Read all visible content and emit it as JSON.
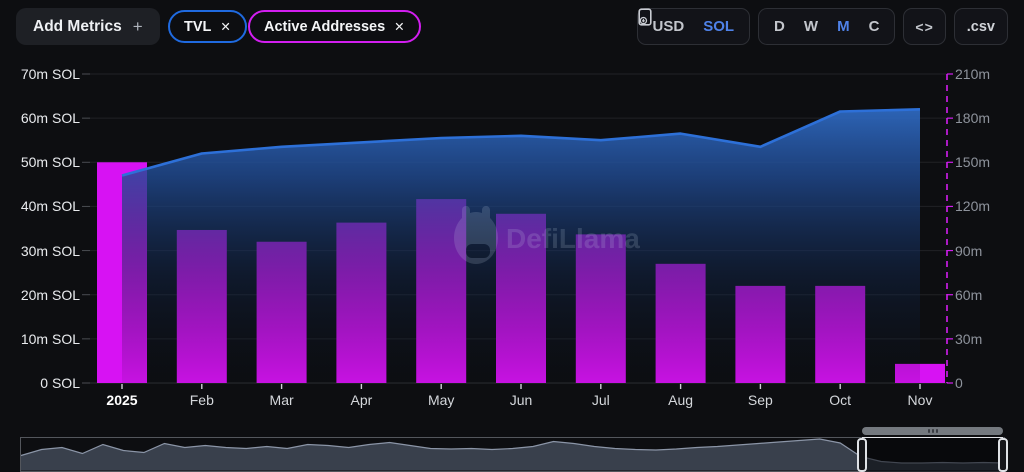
{
  "header": {
    "add_metrics_label": "Add Metrics",
    "add_metrics_plus": "+",
    "metric_pills": [
      {
        "label": "TVL",
        "close": "✕",
        "color": "#1f6ae0"
      },
      {
        "label": "Active Addresses",
        "close": "✕",
        "color": "#d21ef0"
      }
    ],
    "currency_toggle": {
      "options": [
        "USD",
        "SOL"
      ],
      "selected": "SOL",
      "active_color": "#4f82e8"
    },
    "interval_toggle": {
      "options": [
        "D",
        "W",
        "M",
        "C"
      ],
      "selected": "M",
      "active_color": "#4f82e8"
    },
    "embed_label": "<>",
    "csv_label": ".csv"
  },
  "chart_data": {
    "type": "combo",
    "categories": [
      "2025",
      "Feb",
      "Mar",
      "Apr",
      "May",
      "Jun",
      "Jul",
      "Aug",
      "Sep",
      "Oct",
      "Nov"
    ],
    "series": [
      {
        "name": "TVL",
        "type": "line",
        "axis": "left",
        "unit": "m SOL",
        "color": "#2d70d8",
        "values": [
          47,
          52,
          53.5,
          54.5,
          55.5,
          56,
          55,
          56.5,
          53.5,
          61.5,
          62
        ]
      },
      {
        "name": "Active Addresses",
        "type": "bar",
        "axis": "right",
        "unit": "m",
        "color": "#d712f3",
        "values": [
          150,
          104,
          96,
          109,
          125,
          115,
          101,
          81,
          66,
          66,
          13
        ]
      }
    ],
    "left_axis": {
      "title": "SOL",
      "min": 0,
      "max": 70,
      "ticks": [
        "70m SOL",
        "60m SOL",
        "50m SOL",
        "40m SOL",
        "30m SOL",
        "20m SOL",
        "10m SOL",
        "0 SOL"
      ]
    },
    "right_axis": {
      "min": 0,
      "max": 210,
      "color": "#d21ef0",
      "ticks": [
        "210m",
        "180m",
        "150m",
        "120m",
        "90m",
        "60m",
        "30m",
        "0"
      ]
    },
    "grid": true,
    "legend_position": "none",
    "watermark": "DefiLlama",
    "navigator": {
      "values": [
        0.3,
        0.42,
        0.46,
        0.34,
        0.52,
        0.4,
        0.36,
        0.54,
        0.46,
        0.5,
        0.46,
        0.44,
        0.48,
        0.44,
        0.52,
        0.5,
        0.46,
        0.52,
        0.56,
        0.5,
        0.44,
        0.43,
        0.44,
        0.42,
        0.44,
        0.48,
        0.58,
        0.54,
        0.48,
        0.44,
        0.42,
        0.41,
        0.43,
        0.46,
        0.48,
        0.51,
        0.54,
        0.57,
        0.6,
        0.63,
        0.55,
        0.28,
        0.18,
        0.15,
        0.15,
        0.16,
        0.15,
        0.16,
        0.15
      ],
      "selection_start": 0.855,
      "selection_end": 0.998
    }
  }
}
